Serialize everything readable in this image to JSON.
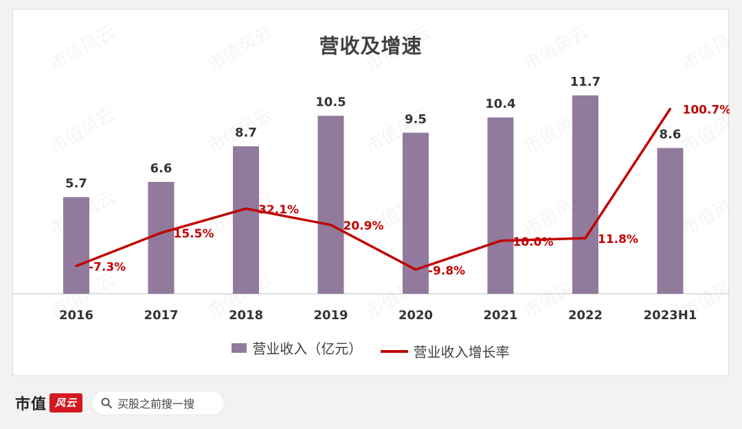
{
  "chart_data": {
    "type": "bar",
    "title": "营收及增速",
    "categories": [
      "2016",
      "2017",
      "2018",
      "2019",
      "2020",
      "2021",
      "2022",
      "2023H1"
    ],
    "series": [
      {
        "name": "营业收入（亿元）",
        "type": "bar",
        "color": "#917a9b",
        "values": [
          5.7,
          6.6,
          8.7,
          10.5,
          9.5,
          10.4,
          11.7,
          8.6
        ],
        "labels": [
          "5.7",
          "6.6",
          "8.7",
          "10.5",
          "9.5",
          "10.4",
          "11.7",
          "8.6"
        ]
      },
      {
        "name": "营业收入增长率",
        "type": "line",
        "color": "#c00000",
        "values": [
          -7.3,
          15.5,
          32.1,
          20.9,
          -9.8,
          10.0,
          11.8,
          100.7
        ],
        "labels": [
          "-7.3%",
          "15.5%",
          "32.1%",
          "20.9%",
          "-9.8%",
          "10.0%",
          "11.8%",
          "100.7%"
        ]
      }
    ],
    "legend_position": "bottom",
    "grid": false
  },
  "footer": {
    "brand_text": "市值",
    "brand_mark": "风云",
    "search_text": "买股之前搜一搜"
  },
  "watermark_text": "市值风云",
  "colors": {
    "bar": "#917a9b",
    "line": "#c00000",
    "background": "#f2f2f2"
  }
}
